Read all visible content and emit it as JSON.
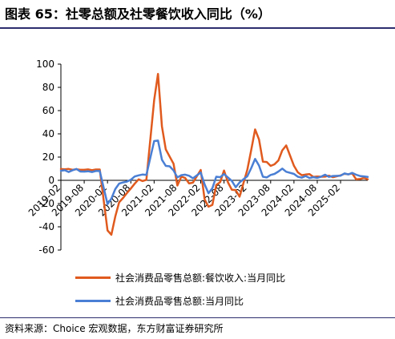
{
  "title": "图表 65：社零总额及社零餐饮收入同比（%）",
  "source": "资料来源：Choice 宏观数据，东方财富证券研究所",
  "chart_data": {
    "type": "line",
    "ylim": [
      -60,
      100
    ],
    "yticks": [
      -60,
      -40,
      -20,
      0,
      20,
      40,
      60,
      80,
      100
    ],
    "x_range": [
      "2019-02",
      "2025-09"
    ],
    "xticks": [
      "2019-02",
      "2019-08",
      "2020-02",
      "2020-08",
      "2021-02",
      "2021-08",
      "2022-02",
      "2022-08",
      "2023-02",
      "2023-08",
      "2024-02",
      "2024-08",
      "2025-02"
    ],
    "grid": false,
    "legend_position": "bottom",
    "series": [
      {
        "name": "社会消费品零售总额:餐饮收入:当月同比",
        "color": "#e05a1e",
        "points": [
          [
            "2019-02",
            9.7
          ],
          [
            "2019-03",
            9.5
          ],
          [
            "2019-04",
            9.8
          ],
          [
            "2019-05",
            9.0
          ],
          [
            "2019-06",
            9.5
          ],
          [
            "2019-07",
            9.0
          ],
          [
            "2019-08",
            9.0
          ],
          [
            "2019-09",
            9.4
          ],
          [
            "2019-10",
            8.7
          ],
          [
            "2019-11",
            9.3
          ],
          [
            "2019-12",
            9.3
          ],
          [
            "2020-02",
            -43.1
          ],
          [
            "2020-03",
            -46.8
          ],
          [
            "2020-04",
            -31.1
          ],
          [
            "2020-05",
            -18.9
          ],
          [
            "2020-06",
            -15.2
          ],
          [
            "2020-07",
            -11.0
          ],
          [
            "2020-08",
            -7.0
          ],
          [
            "2020-09",
            -2.9
          ],
          [
            "2020-10",
            0.8
          ],
          [
            "2020-11",
            -0.6
          ],
          [
            "2020-12",
            0.4
          ],
          [
            "2021-02",
            68.9
          ],
          [
            "2021-03",
            91.6
          ],
          [
            "2021-04",
            46.4
          ],
          [
            "2021-05",
            26.6
          ],
          [
            "2021-06",
            20.5
          ],
          [
            "2021-07",
            14.3
          ],
          [
            "2021-08",
            -4.5
          ],
          [
            "2021-09",
            3.1
          ],
          [
            "2021-10",
            2.0
          ],
          [
            "2021-11",
            -2.7
          ],
          [
            "2021-12",
            -2.0
          ],
          [
            "2022-02",
            8.9
          ],
          [
            "2022-03",
            -16.4
          ],
          [
            "2022-04",
            -22.7
          ],
          [
            "2022-05",
            -21.1
          ],
          [
            "2022-06",
            -4.0
          ],
          [
            "2022-07",
            -1.5
          ],
          [
            "2022-08",
            8.4
          ],
          [
            "2022-09",
            -1.7
          ],
          [
            "2022-10",
            -8.1
          ],
          [
            "2022-11",
            -8.4
          ],
          [
            "2022-12",
            -14.1
          ],
          [
            "2023-02",
            9.2
          ],
          [
            "2023-03",
            26.3
          ],
          [
            "2023-04",
            43.8
          ],
          [
            "2023-05",
            35.1
          ],
          [
            "2023-06",
            16.1
          ],
          [
            "2023-07",
            15.8
          ],
          [
            "2023-08",
            12.4
          ],
          [
            "2023-09",
            13.8
          ],
          [
            "2023-10",
            17.1
          ],
          [
            "2023-11",
            25.8
          ],
          [
            "2023-12",
            30.0
          ],
          [
            "2024-02",
            12.5
          ],
          [
            "2024-03",
            6.9
          ],
          [
            "2024-04",
            4.4
          ],
          [
            "2024-05",
            5.0
          ],
          [
            "2024-06",
            5.4
          ],
          [
            "2024-07",
            3.0
          ],
          [
            "2024-08",
            3.3
          ],
          [
            "2024-09",
            3.1
          ],
          [
            "2024-10",
            3.2
          ],
          [
            "2024-11",
            4.0
          ],
          [
            "2024-12",
            2.7
          ],
          [
            "2025-02",
            4.3
          ],
          [
            "2025-03",
            5.6
          ],
          [
            "2025-04",
            5.2
          ],
          [
            "2025-05",
            5.9
          ],
          [
            "2025-06",
            0.9
          ],
          [
            "2025-07",
            1.1
          ],
          [
            "2025-08",
            2.1
          ],
          [
            "2025-09",
            0.9
          ]
        ]
      },
      {
        "name": "社会消费品零售总额:当月同比",
        "color": "#4a7fd4",
        "points": [
          [
            "2019-02",
            8.2
          ],
          [
            "2019-03",
            8.7
          ],
          [
            "2019-04",
            7.2
          ],
          [
            "2019-05",
            8.6
          ],
          [
            "2019-06",
            9.8
          ],
          [
            "2019-07",
            7.6
          ],
          [
            "2019-08",
            7.5
          ],
          [
            "2019-09",
            7.8
          ],
          [
            "2019-10",
            7.2
          ],
          [
            "2019-11",
            8.0
          ],
          [
            "2019-12",
            8.0
          ],
          [
            "2020-02",
            -20.5
          ],
          [
            "2020-03",
            -15.8
          ],
          [
            "2020-04",
            -7.5
          ],
          [
            "2020-05",
            -2.8
          ],
          [
            "2020-06",
            -1.8
          ],
          [
            "2020-07",
            -1.1
          ],
          [
            "2020-08",
            0.5
          ],
          [
            "2020-09",
            3.3
          ],
          [
            "2020-10",
            4.3
          ],
          [
            "2020-11",
            5.0
          ],
          [
            "2020-12",
            4.6
          ],
          [
            "2021-02",
            33.8
          ],
          [
            "2021-03",
            34.2
          ],
          [
            "2021-04",
            17.7
          ],
          [
            "2021-05",
            12.4
          ],
          [
            "2021-06",
            12.1
          ],
          [
            "2021-07",
            8.5
          ],
          [
            "2021-08",
            2.5
          ],
          [
            "2021-09",
            4.4
          ],
          [
            "2021-10",
            4.9
          ],
          [
            "2021-11",
            3.9
          ],
          [
            "2021-12",
            1.7
          ],
          [
            "2022-02",
            6.7
          ],
          [
            "2022-03",
            -3.5
          ],
          [
            "2022-04",
            -11.1
          ],
          [
            "2022-05",
            -6.7
          ],
          [
            "2022-06",
            3.1
          ],
          [
            "2022-07",
            2.7
          ],
          [
            "2022-08",
            5.4
          ],
          [
            "2022-09",
            2.5
          ],
          [
            "2022-10",
            -0.5
          ],
          [
            "2022-11",
            -5.9
          ],
          [
            "2022-12",
            -1.8
          ],
          [
            "2023-02",
            3.5
          ],
          [
            "2023-03",
            10.6
          ],
          [
            "2023-04",
            18.4
          ],
          [
            "2023-05",
            12.7
          ],
          [
            "2023-06",
            3.1
          ],
          [
            "2023-07",
            2.5
          ],
          [
            "2023-08",
            4.6
          ],
          [
            "2023-09",
            5.5
          ],
          [
            "2023-10",
            7.6
          ],
          [
            "2023-11",
            10.1
          ],
          [
            "2023-12",
            7.4
          ],
          [
            "2024-02",
            5.5
          ],
          [
            "2024-03",
            3.1
          ],
          [
            "2024-04",
            2.3
          ],
          [
            "2024-05",
            3.7
          ],
          [
            "2024-06",
            2.0
          ],
          [
            "2024-07",
            2.7
          ],
          [
            "2024-08",
            2.1
          ],
          [
            "2024-09",
            3.2
          ],
          [
            "2024-10",
            4.8
          ],
          [
            "2024-11",
            3.0
          ],
          [
            "2024-12",
            3.7
          ],
          [
            "2025-02",
            4.0
          ],
          [
            "2025-03",
            5.9
          ],
          [
            "2025-04",
            5.1
          ],
          [
            "2025-05",
            6.4
          ],
          [
            "2025-06",
            4.8
          ],
          [
            "2025-07",
            3.7
          ],
          [
            "2025-08",
            3.4
          ],
          [
            "2025-09",
            3.0
          ]
        ]
      }
    ]
  }
}
